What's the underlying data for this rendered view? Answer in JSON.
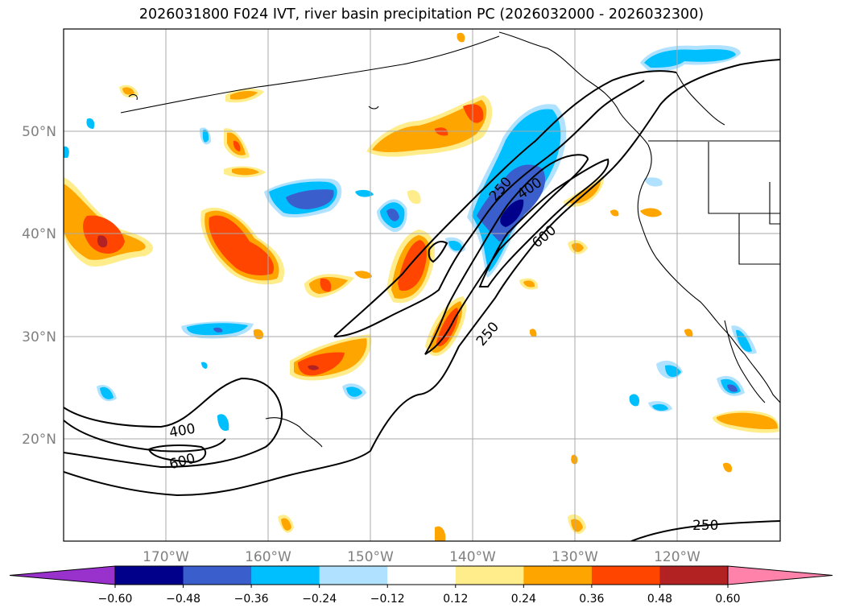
{
  "title": "2026031800 F024 IVT, river basin precipitation PC (2026032000 - 2026032300)",
  "map": {
    "lon_range": [
      -180,
      -110
    ],
    "lat_range": [
      10,
      60
    ],
    "lat_labels": [
      "50°N",
      "40°N",
      "30°N",
      "20°N"
    ],
    "lon_labels": [
      "170°W",
      "160°W",
      "150°W",
      "140°W",
      "130°W",
      "120°W"
    ],
    "contour_labels": [
      "250",
      "400",
      "600",
      "400",
      "600",
      "250",
      "250"
    ]
  },
  "colorbar": {
    "ticks": [
      "−0.60",
      "−0.48",
      "−0.36",
      "−0.24",
      "−0.12",
      "0.12",
      "0.24",
      "0.36",
      "0.48",
      "0.60"
    ],
    "colors": [
      "#9932CC",
      "#00008B",
      "#3A5FCD",
      "#00BFFF",
      "#B0E2FF",
      "#FFFFFF",
      "#FFEC8B",
      "#FFA500",
      "#FF4500",
      "#B22222",
      "#FF82AB"
    ]
  },
  "palette": {
    "light_yellow": "#FFEC8B",
    "orange": "#FFA500",
    "red_orange": "#FF4500",
    "dark_red": "#B22222",
    "light_blue": "#B0E2FF",
    "deep_sky": "#00BFFF",
    "royal_blue": "#3A5FCD",
    "navy": "#00008B"
  }
}
